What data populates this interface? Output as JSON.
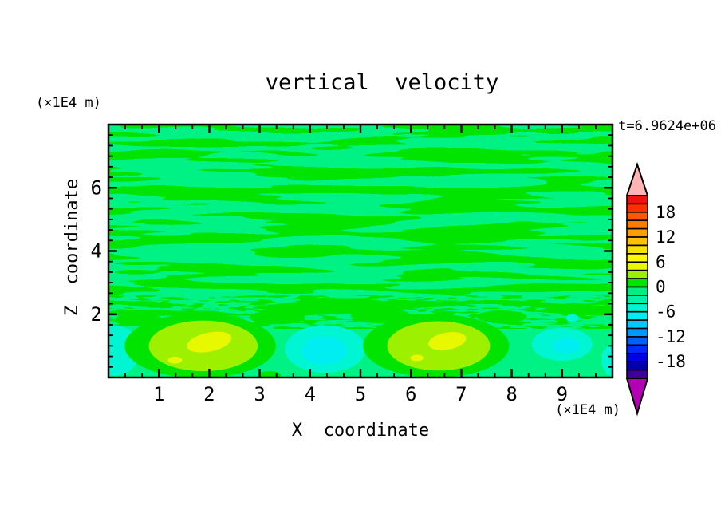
{
  "title": "vertical  velocity",
  "time_annotation": "t=6.9624e+06",
  "plot_colors": {
    "background_negative": "#00f285",
    "positive_green": "#00e400",
    "chartreuse": "#9cf000",
    "yellow": "#e8f800",
    "aqua": "#00f6d2",
    "cyan": "#00eef2"
  },
  "chart_data": {
    "type": "heatmap",
    "title": "vertical  velocity",
    "xlabel": "X  coordinate",
    "ylabel": "Z  coordinate",
    "x_unit": "(×1E4 m)",
    "y_unit": "(×1E4 m)",
    "time_annotation": "t=6.9624e+06",
    "xlim": [
      0,
      10
    ],
    "ylim": [
      0,
      8
    ],
    "x_major_ticks": [
      1,
      2,
      3,
      4,
      5,
      6,
      7,
      8,
      9
    ],
    "y_major_ticks": [
      2,
      4,
      6
    ],
    "minor_ticks_per_unit": 3,
    "grid": false,
    "legend_position": "right-colorbar",
    "colorbar": {
      "labels": [
        18,
        12,
        6,
        0,
        -6,
        -12,
        -18
      ],
      "level_step": 2,
      "range": [
        22,
        -22
      ],
      "colors_top_to_bottom": [
        "#f01010",
        "#ff3000",
        "#ff5800",
        "#ff7c00",
        "#ff9e00",
        "#ffc000",
        "#ffe000",
        "#fff800",
        "#e8f800",
        "#9cf000",
        "#00e400",
        "#00ef80",
        "#00f2a8",
        "#00f6d2",
        "#00eef2",
        "#00c8ff",
        "#0098ff",
        "#0060ff",
        "#0028ff",
        "#0000e0",
        "#0000a8",
        "#3c0096"
      ],
      "over_arrow_color": "#ffb4b4",
      "under_arrow_color": "#b400b4"
    },
    "field_summary": "Background weakly negative (spring green, 0 to -2) with wavy horizontal positive streaks (green, 0 to +2) above z=2; below z=2 two strong updraft plumes peaking +4 to +6 near x=1.9 and x=6.5, downdraft cells -4 to -6 near x=4.3 and x=9.0.",
    "features": [
      {
        "x": 0.12,
        "z": 0.85,
        "rx": 0.5,
        "rz": 0.8,
        "color": "aqua"
      },
      {
        "x": 1.82,
        "z": 1.0,
        "rx": 1.5,
        "rz": 1.02,
        "color": "positive_green"
      },
      {
        "x": 1.88,
        "z": 1.0,
        "rx": 1.08,
        "rz": 0.8,
        "color": "chartreuse"
      },
      {
        "x": 2.0,
        "z": 1.12,
        "rx": 0.45,
        "rz": 0.3,
        "color": "yellow",
        "rot": -12
      },
      {
        "x": 1.32,
        "z": 0.55,
        "rx": 0.14,
        "rz": 0.11,
        "color": "yellow"
      },
      {
        "x": 4.3,
        "z": 0.9,
        "rx": 0.8,
        "rz": 0.75,
        "color": "aqua"
      },
      {
        "x": 4.28,
        "z": 0.85,
        "rx": 0.45,
        "rz": 0.45,
        "color": "cyan"
      },
      {
        "x": 6.5,
        "z": 1.0,
        "rx": 1.45,
        "rz": 1.0,
        "color": "positive_green"
      },
      {
        "x": 6.55,
        "z": 1.0,
        "rx": 1.02,
        "rz": 0.78,
        "color": "chartreuse"
      },
      {
        "x": 6.72,
        "z": 1.15,
        "rx": 0.38,
        "rz": 0.27,
        "color": "yellow",
        "rot": -10
      },
      {
        "x": 6.12,
        "z": 0.62,
        "rx": 0.13,
        "rz": 0.1,
        "color": "yellow"
      },
      {
        "x": 9.0,
        "z": 1.05,
        "rx": 0.6,
        "rz": 0.52,
        "color": "aqua"
      },
      {
        "x": 9.08,
        "z": 1.0,
        "rx": 0.27,
        "rz": 0.24,
        "color": "cyan"
      },
      {
        "x": 9.2,
        "z": 1.88,
        "rx": 0.12,
        "rz": 0.12,
        "color": "aqua"
      },
      {
        "x": 10.0,
        "z": 0.55,
        "rx": 0.22,
        "rz": 0.5,
        "color": "aqua"
      },
      {
        "x": 3.35,
        "z": 1.9,
        "rx": 0.55,
        "rz": 0.22,
        "color": "positive_green"
      },
      {
        "x": 5.4,
        "z": 1.95,
        "rx": 0.6,
        "rz": 0.24,
        "color": "positive_green"
      },
      {
        "x": 7.8,
        "z": 1.92,
        "rx": 0.5,
        "rz": 0.2,
        "color": "positive_green"
      },
      {
        "x": 0.6,
        "z": 1.85,
        "rx": 0.45,
        "rz": 0.2,
        "color": "positive_green"
      },
      {
        "x": 3.2,
        "z": 0.08,
        "rx": 0.22,
        "rz": 0.12,
        "color": "positive_green"
      }
    ]
  }
}
